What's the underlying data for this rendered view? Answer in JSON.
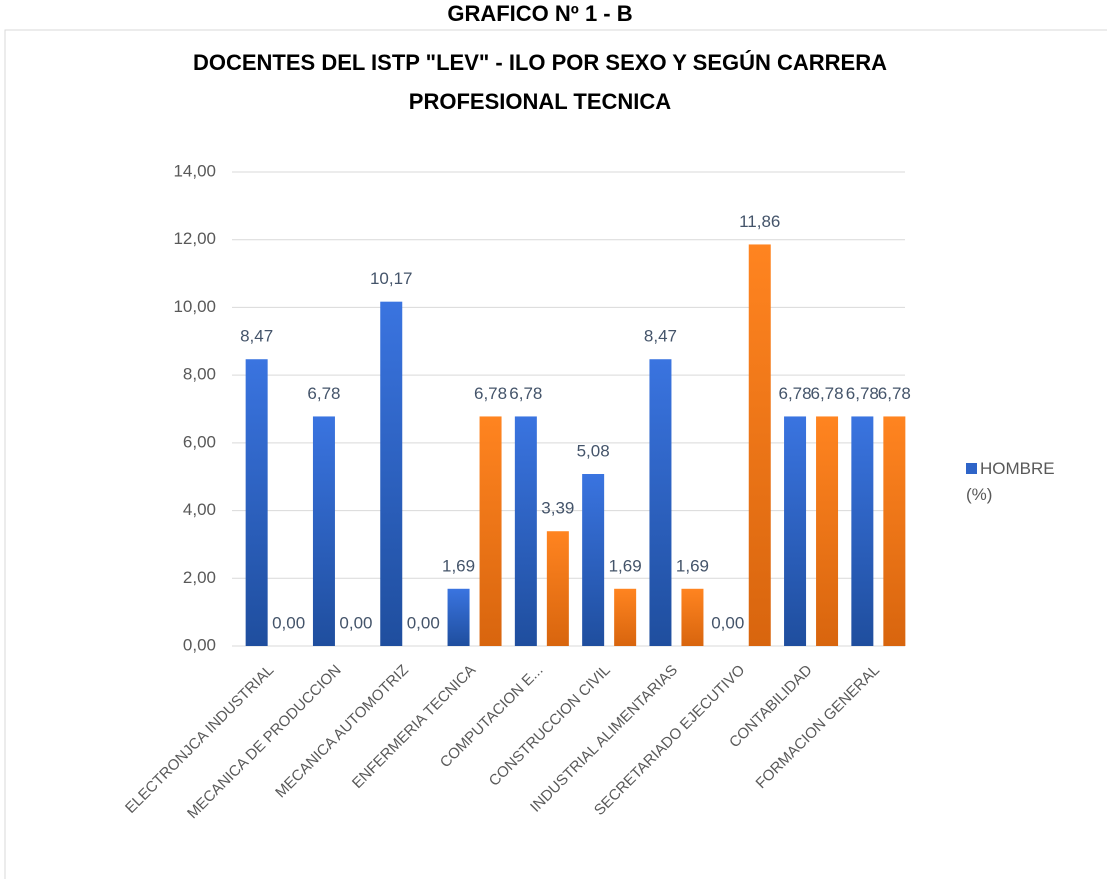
{
  "chart_data": {
    "type": "bar",
    "title": [
      "GRAFICO Nº 1 - B",
      "DOCENTES DEL ISTP \"LEV\" - ILO POR SEXO Y SEGÚN CARRERA",
      "PROFESIONAL TECNICA"
    ],
    "categories": [
      "ELECTRONJCA INDUSTRIAL",
      "MECANICA DE PRODUCCION",
      "MECANICA AUTOMOTRIZ",
      "ENFERMERIA TECNICA",
      "COMPUTACION E...",
      "CONSTRUCCION CIVIL",
      "INDUSTRIAL ALIMENTARIAS",
      "SECRETARIADO EJECUTIVO",
      "CONTABILIDAD",
      "FORMACION GENERAL"
    ],
    "series": [
      {
        "name": "HOMBRE (%)",
        "color": "#2e64c8",
        "values": [
          8.47,
          6.78,
          10.17,
          1.69,
          6.78,
          5.08,
          8.47,
          0.0,
          6.78,
          6.78
        ],
        "value_labels": [
          "8,47",
          "6,78",
          "10,17",
          "1,69",
          "6,78",
          "5,08",
          "8,47",
          "0,00",
          "6,78",
          "6,78"
        ]
      },
      {
        "color": "#f07a18",
        "values": [
          0.0,
          0.0,
          0.0,
          6.78,
          3.39,
          1.69,
          1.69,
          11.86,
          6.78,
          6.78
        ],
        "value_labels": [
          "0,00",
          "0,00",
          "0,00",
          "6,78",
          "3,39",
          "1,69",
          "1,69",
          "11,86",
          "6,78",
          "6,78"
        ]
      }
    ],
    "ylim": [
      0,
      14
    ],
    "yticks": [
      {
        "value": 0,
        "label": "0,00"
      },
      {
        "value": 2,
        "label": "2,00"
      },
      {
        "value": 4,
        "label": "4,00"
      },
      {
        "value": 6,
        "label": "6,00"
      },
      {
        "value": 8,
        "label": "8,00"
      },
      {
        "value": 10,
        "label": "10,00"
      },
      {
        "value": 12,
        "label": "12,00"
      },
      {
        "value": 14,
        "label": "14,00"
      }
    ],
    "grid": true,
    "legend": "right"
  }
}
